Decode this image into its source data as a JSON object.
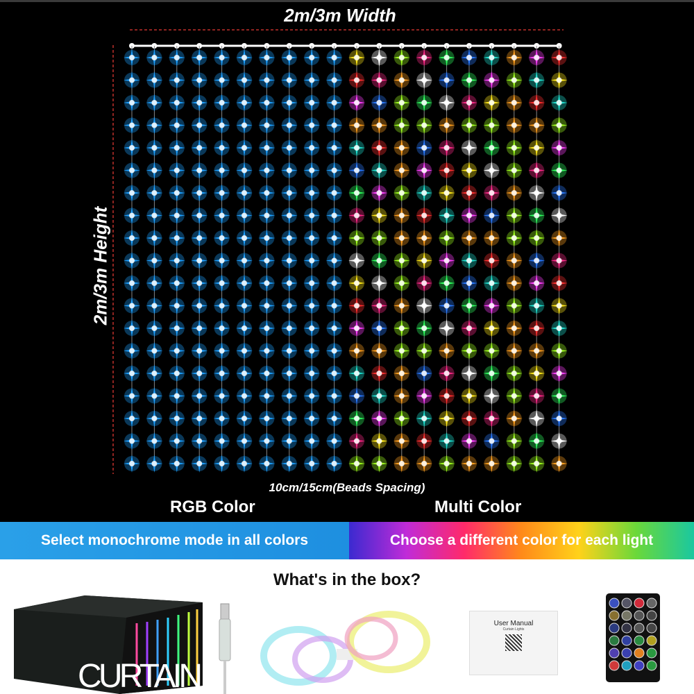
{
  "dimensions": {
    "width_label": "2m/3m Width",
    "height_label": "2m/3m Height",
    "spacing_label": "10cm/15cm(Beads Spacing)"
  },
  "modes": {
    "rgb_label": "RGB Color",
    "multi_label": "Multi Color",
    "rgb_banner": "Select monochrome mode in all colors",
    "multi_banner": "Choose a different color for each light"
  },
  "box": {
    "title": "What's in the box?",
    "package_text": "CURTAIN",
    "manual_title": "User Manual",
    "manual_subtitle": "Curtain Lights"
  },
  "colors": {
    "rgb_bulb": "#1ea0ff",
    "multi_palette": [
      "#ffe81a",
      "#ff2a8a",
      "#20e0d0",
      "#ff3030",
      "#a0ff20",
      "#2a7aff",
      "#ff40ff",
      "#ffffff",
      "#30ff60",
      "#ffa020"
    ],
    "dimension_line": "#c0302a"
  }
}
